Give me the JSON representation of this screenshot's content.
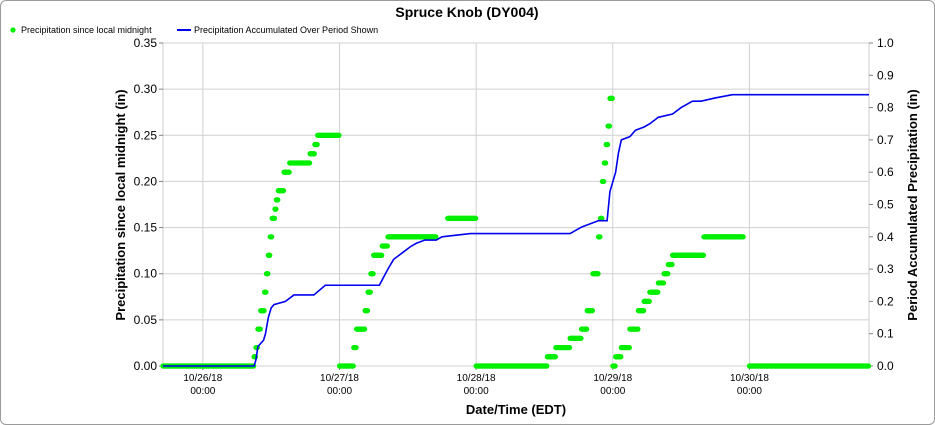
{
  "chart_data": {
    "type": "scatter+line",
    "title": "Spruce Knob (DY004)",
    "xlabel": "Date/Time (EDT)",
    "ylabel_left": "Precipitation since local midnight (in)",
    "ylabel_right": "Period Accumulated Precipitation (in)",
    "x_range": [
      "10/25/18 17:00",
      "10/30/18 21:00"
    ],
    "x_ticks": [
      {
        "date": "10/26/18",
        "time": "00:00"
      },
      {
        "date": "10/27/18",
        "time": "00:00"
      },
      {
        "date": "10/28/18",
        "time": "00:00"
      },
      {
        "date": "10/29/18",
        "time": "00:00"
      },
      {
        "date": "10/30/18",
        "time": "00:00"
      }
    ],
    "ylim_left": [
      0,
      0.35
    ],
    "y_ticks_left": [
      "0.00",
      "0.05",
      "0.10",
      "0.15",
      "0.20",
      "0.25",
      "0.30",
      "0.35"
    ],
    "ylim_right": [
      0,
      1.0
    ],
    "y_ticks_right": [
      "0.0",
      "0.1",
      "0.2",
      "0.3",
      "0.4",
      "0.5",
      "0.6",
      "0.7",
      "0.8",
      "0.9",
      "1.0"
    ],
    "grid": true,
    "legend_position": "top-left",
    "series": [
      {
        "name": "Precipitation since local midnight",
        "kind": "points",
        "color": "#00ee00",
        "axis": "left",
        "segments": [
          {
            "from": "10/25/18 17:00",
            "to": "10/26/18 09:00",
            "value": 0.0
          },
          {
            "from": "10/26/18 09:00",
            "to": "10/26/18 09:20",
            "value": 0.01
          },
          {
            "from": "10/26/18 09:20",
            "to": "10/26/18 09:40",
            "value": 0.02
          },
          {
            "from": "10/26/18 09:40",
            "to": "10/26/18 10:10",
            "value": 0.04
          },
          {
            "from": "10/26/18 10:10",
            "to": "10/26/18 10:50",
            "value": 0.06
          },
          {
            "from": "10/26/18 10:50",
            "to": "10/26/18 11:10",
            "value": 0.08
          },
          {
            "from": "10/26/18 11:10",
            "to": "10/26/18 11:30",
            "value": 0.1
          },
          {
            "from": "10/26/18 11:30",
            "to": "10/26/18 11:50",
            "value": 0.12
          },
          {
            "from": "10/26/18 11:50",
            "to": "10/26/18 12:10",
            "value": 0.14
          },
          {
            "from": "10/26/18 12:10",
            "to": "10/26/18 12:40",
            "value": 0.16
          },
          {
            "from": "10/26/18 12:40",
            "to": "10/26/18 12:55",
            "value": 0.17
          },
          {
            "from": "10/26/18 12:55",
            "to": "10/26/18 13:15",
            "value": 0.18
          },
          {
            "from": "10/26/18 13:15",
            "to": "10/26/18 14:15",
            "value": 0.19
          },
          {
            "from": "10/26/18 14:15",
            "to": "10/26/18 15:15",
            "value": 0.21
          },
          {
            "from": "10/26/18 15:15",
            "to": "10/26/18 18:50",
            "value": 0.22
          },
          {
            "from": "10/26/18 18:50",
            "to": "10/26/18 19:40",
            "value": 0.23
          },
          {
            "from": "10/26/18 19:40",
            "to": "10/26/18 20:10",
            "value": 0.24
          },
          {
            "from": "10/26/18 20:10",
            "to": "10/27/18 00:00",
            "value": 0.25
          },
          {
            "from": "10/27/18 00:00",
            "to": "10/27/18 02:30",
            "value": 0.0
          },
          {
            "from": "10/27/18 02:30",
            "to": "10/27/18 03:00",
            "value": 0.02
          },
          {
            "from": "10/27/18 03:00",
            "to": "10/27/18 04:30",
            "value": 0.04
          },
          {
            "from": "10/27/18 04:30",
            "to": "10/27/18 05:00",
            "value": 0.06
          },
          {
            "from": "10/27/18 05:00",
            "to": "10/27/18 05:30",
            "value": 0.08
          },
          {
            "from": "10/27/18 05:30",
            "to": "10/27/18 06:00",
            "value": 0.1
          },
          {
            "from": "10/27/18 06:00",
            "to": "10/27/18 07:30",
            "value": 0.12
          },
          {
            "from": "10/27/18 07:30",
            "to": "10/27/18 08:30",
            "value": 0.13
          },
          {
            "from": "10/27/18 08:30",
            "to": "10/27/18 09:30",
            "value": 0.14
          },
          {
            "from": "10/27/18 09:30",
            "to": "10/27/18 17:00",
            "value": 0.14
          },
          {
            "from": "10/27/18 19:00",
            "to": "10/28/18 00:00",
            "value": 0.16
          },
          {
            "from": "10/28/18 00:00",
            "to": "10/28/18 12:30",
            "value": 0.0
          },
          {
            "from": "10/28/18 12:30",
            "to": "10/28/18 14:00",
            "value": 0.01
          },
          {
            "from": "10/28/18 14:00",
            "to": "10/28/18 16:30",
            "value": 0.02
          },
          {
            "from": "10/28/18 16:30",
            "to": "10/28/18 18:30",
            "value": 0.03
          },
          {
            "from": "10/28/18 18:30",
            "to": "10/28/18 19:30",
            "value": 0.04
          },
          {
            "from": "10/28/18 19:30",
            "to": "10/28/18 20:30",
            "value": 0.06
          },
          {
            "from": "10/28/18 20:30",
            "to": "10/28/18 21:30",
            "value": 0.1
          },
          {
            "from": "10/28/18 21:30",
            "to": "10/28/18 21:50",
            "value": 0.14
          },
          {
            "from": "10/28/18 21:50",
            "to": "10/28/18 22:10",
            "value": 0.16
          },
          {
            "from": "10/28/18 22:10",
            "to": "10/28/18 22:30",
            "value": 0.2
          },
          {
            "from": "10/28/18 22:30",
            "to": "10/28/18 22:50",
            "value": 0.22
          },
          {
            "from": "10/28/18 22:50",
            "to": "10/28/18 23:10",
            "value": 0.24
          },
          {
            "from": "10/28/18 23:10",
            "to": "10/28/18 23:30",
            "value": 0.26
          },
          {
            "from": "10/28/18 23:30",
            "to": "10/29/18 00:00",
            "value": 0.29
          },
          {
            "from": "10/29/18 00:00",
            "to": "10/29/18 00:30",
            "value": 0.0
          },
          {
            "from": "10/29/18 00:30",
            "to": "10/29/18 01:30",
            "value": 0.01
          },
          {
            "from": "10/29/18 01:30",
            "to": "10/29/18 03:00",
            "value": 0.02
          },
          {
            "from": "10/29/18 03:00",
            "to": "10/29/18 04:30",
            "value": 0.04
          },
          {
            "from": "10/29/18 04:30",
            "to": "10/29/18 05:30",
            "value": 0.06
          },
          {
            "from": "10/29/18 05:30",
            "to": "10/29/18 06:30",
            "value": 0.07
          },
          {
            "from": "10/29/18 06:30",
            "to": "10/29/18 08:00",
            "value": 0.08
          },
          {
            "from": "10/29/18 08:00",
            "to": "10/29/18 09:00",
            "value": 0.09
          },
          {
            "from": "10/29/18 09:00",
            "to": "10/29/18 09:45",
            "value": 0.1
          },
          {
            "from": "10/29/18 09:45",
            "to": "10/29/18 10:30",
            "value": 0.11
          },
          {
            "from": "10/29/18 10:30",
            "to": "10/29/18 16:00",
            "value": 0.12
          },
          {
            "from": "10/29/18 16:00",
            "to": "10/29/18 23:00",
            "value": 0.14
          },
          {
            "from": "10/30/18 00:00",
            "to": "10/30/18 21:00",
            "value": 0.0
          }
        ]
      },
      {
        "name": "Precipitation Accumulated Over Period Shown",
        "kind": "line",
        "color": "#0000ee",
        "axis": "right",
        "points": [
          [
            "10/25/18 17:00",
            0.0
          ],
          [
            "10/26/18 09:00",
            0.0
          ],
          [
            "10/26/18 09:20",
            0.02
          ],
          [
            "10/26/18 09:40",
            0.06
          ],
          [
            "10/26/18 10:40",
            0.08
          ],
          [
            "10/26/18 11:00",
            0.1
          ],
          [
            "10/26/18 11:30",
            0.15
          ],
          [
            "10/26/18 12:00",
            0.18
          ],
          [
            "10/26/18 12:30",
            0.19
          ],
          [
            "10/26/18 14:30",
            0.2
          ],
          [
            "10/26/18 16:00",
            0.22
          ],
          [
            "10/26/18 19:30",
            0.22
          ],
          [
            "10/26/18 21:30",
            0.25
          ],
          [
            "10/27/18 07:00",
            0.25
          ],
          [
            "10/27/18 08:30",
            0.3
          ],
          [
            "10/27/18 09:30",
            0.33
          ],
          [
            "10/27/18 11:00",
            0.35
          ],
          [
            "10/27/18 12:30",
            0.37
          ],
          [
            "10/27/18 13:30",
            0.38
          ],
          [
            "10/27/18 15:00",
            0.39
          ],
          [
            "10/27/18 17:00",
            0.39
          ],
          [
            "10/27/18 18:00",
            0.4
          ],
          [
            "10/27/18 23:00",
            0.41
          ],
          [
            "10/28/18 16:30",
            0.41
          ],
          [
            "10/28/18 17:30",
            0.42
          ],
          [
            "10/28/18 18:30",
            0.43
          ],
          [
            "10/28/18 21:30",
            0.45
          ],
          [
            "10/28/18 23:00",
            0.45
          ],
          [
            "10/28/18 23:30",
            0.54
          ],
          [
            "10/29/18 00:30",
            0.6
          ],
          [
            "10/29/18 01:00",
            0.66
          ],
          [
            "10/29/18 01:30",
            0.7
          ],
          [
            "10/29/18 03:00",
            0.71
          ],
          [
            "10/29/18 04:00",
            0.73
          ],
          [
            "10/29/18 05:30",
            0.74
          ],
          [
            "10/29/18 06:30",
            0.75
          ],
          [
            "10/29/18 08:00",
            0.77
          ],
          [
            "10/29/18 10:30",
            0.78
          ],
          [
            "10/29/18 12:00",
            0.8
          ],
          [
            "10/29/18 14:00",
            0.82
          ],
          [
            "10/29/18 15:30",
            0.82
          ],
          [
            "10/29/18 18:00",
            0.83
          ],
          [
            "10/29/18 21:00",
            0.84
          ],
          [
            "10/30/18 21:00",
            0.84
          ]
        ]
      }
    ]
  }
}
